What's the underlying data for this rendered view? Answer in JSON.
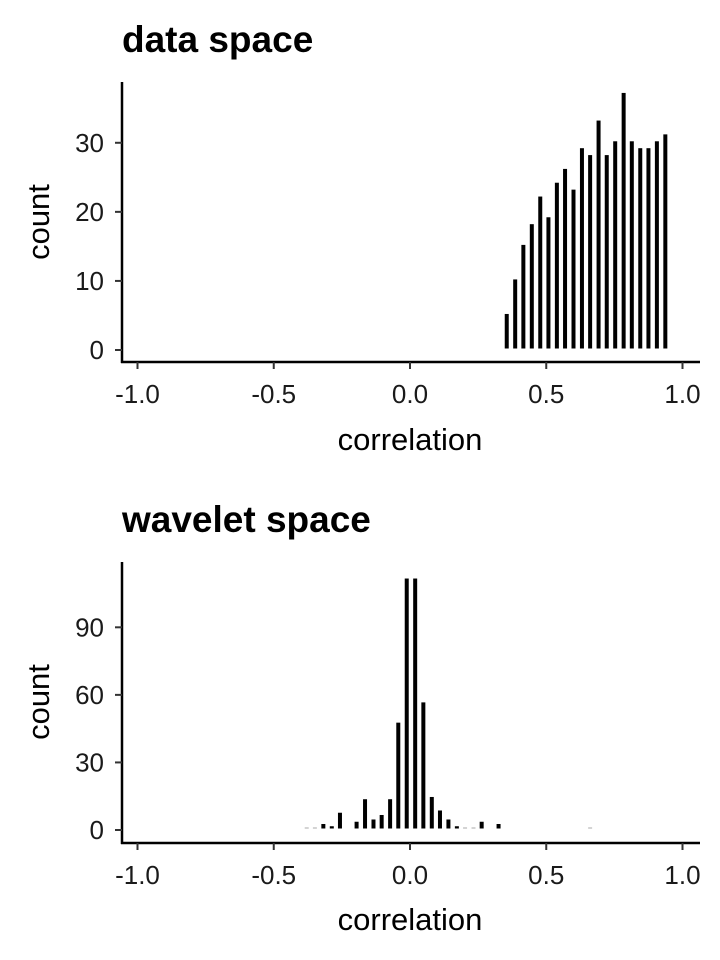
{
  "chart_data": [
    {
      "type": "bar",
      "title": "data space",
      "xlabel": "correlation",
      "ylabel": "count",
      "xlim": [
        -1.1,
        1.1
      ],
      "ylim": [
        0,
        38.8
      ],
      "xticks": [
        "-1.0",
        "-0.5",
        "0.0",
        "0.5",
        "1.0"
      ],
      "xtick_values": [
        -1.0,
        -0.5,
        0.0,
        0.5,
        1.0
      ],
      "yticks": [
        "0",
        "10",
        "20",
        "30"
      ],
      "ytick_values": [
        0,
        10,
        20,
        30
      ],
      "grid": false,
      "bar_color": "#000000",
      "x": [
        0.355,
        0.386,
        0.416,
        0.447,
        0.478,
        0.508,
        0.539,
        0.569,
        0.6,
        0.631,
        0.661,
        0.692,
        0.722,
        0.753,
        0.784,
        0.814,
        0.845,
        0.875,
        0.906,
        0.937
      ],
      "values": [
        5,
        10,
        15,
        18,
        22,
        19,
        24,
        26,
        23,
        29,
        28,
        33,
        28,
        30,
        37,
        30,
        29,
        29,
        30,
        31
      ]
    },
    {
      "type": "bar",
      "title": "wavelet space",
      "xlabel": "correlation",
      "ylabel": "count",
      "xlim": [
        -1.1,
        1.1
      ],
      "ylim": [
        0,
        119
      ],
      "xticks": [
        "-1.0",
        "-0.5",
        "0.0",
        "0.5",
        "1.0"
      ],
      "xtick_values": [
        -1.0,
        -0.5,
        0.0,
        0.5,
        1.0
      ],
      "yticks": [
        "0",
        "30",
        "60",
        "90"
      ],
      "ytick_values": [
        0,
        30,
        60,
        90
      ],
      "grid": false,
      "bar_color": "#000000",
      "x": [
        -0.379,
        -0.349,
        -0.318,
        -0.287,
        -0.257,
        -0.196,
        -0.165,
        -0.134,
        -0.104,
        -0.073,
        -0.043,
        -0.012,
        0.019,
        0.049,
        0.08,
        0.11,
        0.141,
        0.172,
        0.202,
        0.233,
        0.263,
        0.325,
        0.661
      ],
      "values": [
        0.3,
        0.3,
        2,
        1,
        7,
        3,
        13,
        4,
        6,
        13,
        47,
        111,
        111,
        56,
        14,
        8,
        4,
        1,
        0.3,
        0.3,
        3,
        2,
        0.3
      ]
    }
  ]
}
